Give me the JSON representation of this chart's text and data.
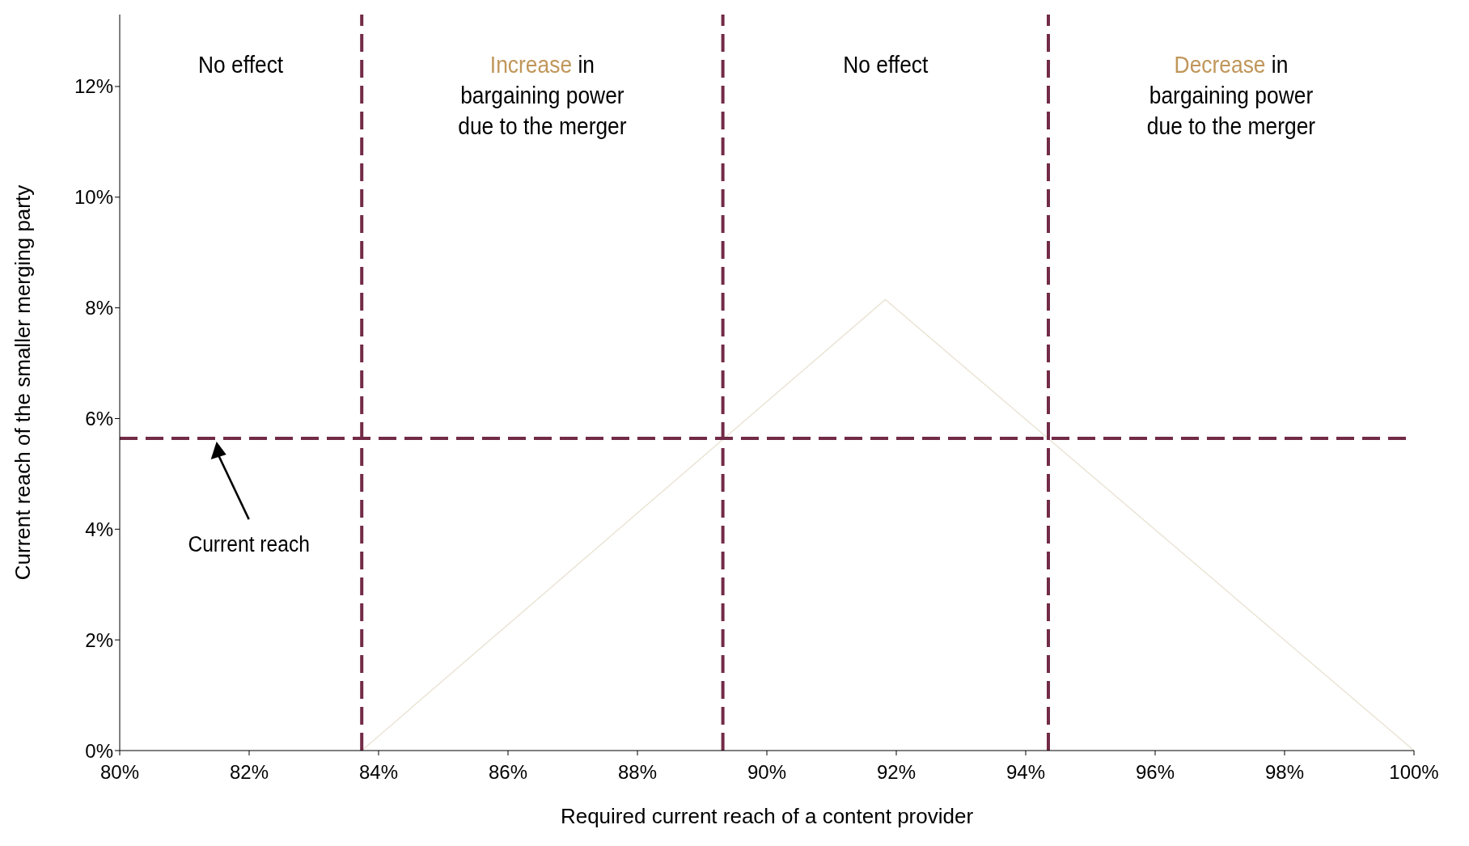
{
  "chart_data": {
    "type": "line",
    "xlabel": "Required current reach of a content provider",
    "ylabel": "Current reach of the smaller merging party",
    "x": [
      83.74,
      91.83,
      100
    ],
    "series": [
      {
        "color": "#ebe5d6",
        "values": [
          0,
          8.15,
          0
        ]
      }
    ],
    "marker": "none",
    "xlim": [
      80,
      100
    ],
    "xticks": [
      {
        "value": 80,
        "label": "80%"
      },
      {
        "value": 82,
        "label": "82%"
      },
      {
        "value": 84,
        "label": "84%"
      },
      {
        "value": 86,
        "label": "86%"
      },
      {
        "value": 88,
        "label": "88%"
      },
      {
        "value": 90,
        "label": "90%"
      },
      {
        "value": 92,
        "label": "92%"
      },
      {
        "value": 94,
        "label": "94%"
      },
      {
        "value": 96,
        "label": "96%"
      },
      {
        "value": 98,
        "label": "98%"
      },
      {
        "value": 100,
        "label": "100%"
      }
    ],
    "ylim": [
      0,
      13.3
    ],
    "yticks": [
      {
        "value": 0,
        "label": "0%"
      },
      {
        "value": 2,
        "label": "2%"
      },
      {
        "value": 4,
        "label": "4%"
      },
      {
        "value": 6,
        "label": "6%"
      },
      {
        "value": 8,
        "label": "8%"
      },
      {
        "value": 10,
        "label": "10%"
      },
      {
        "value": 12,
        "label": "12%"
      }
    ],
    "ref_lines": [
      {
        "axis": "y",
        "value": 5.64,
        "color": "#722b47",
        "line_style": "dashed"
      },
      {
        "axis": "x",
        "value": 83.74,
        "color": "#722b47",
        "line_style": "dashed"
      },
      {
        "axis": "x",
        "value": 89.32,
        "color": "#722b47",
        "line_style": "dashed"
      },
      {
        "axis": "x",
        "value": 94.35,
        "color": "#722b47",
        "line_style": "dashed"
      }
    ],
    "annotations": [
      "No effect",
      "Increase in bargaining power due to the merger",
      "No effect",
      "Decrease in bargaining power due to the merger",
      "Current reach"
    ]
  }
}
